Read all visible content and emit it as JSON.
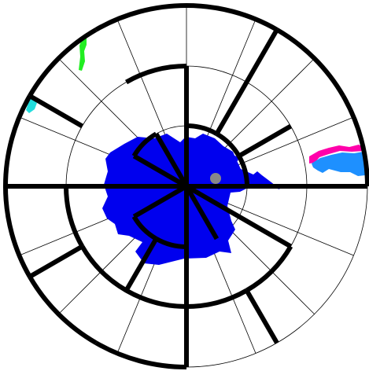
{
  "plot": {
    "colors": {
      "background": "#ffffff",
      "grid": "#000000",
      "outline": "#000000",
      "blue": "#0000ee",
      "light_blue": "#1e90ff",
      "magenta": "#ff00aa",
      "green": "#22ee22",
      "cyan": "#22dddd",
      "marker": "#888888"
    },
    "ring_count": 4,
    "spoke_count": 16
  }
}
